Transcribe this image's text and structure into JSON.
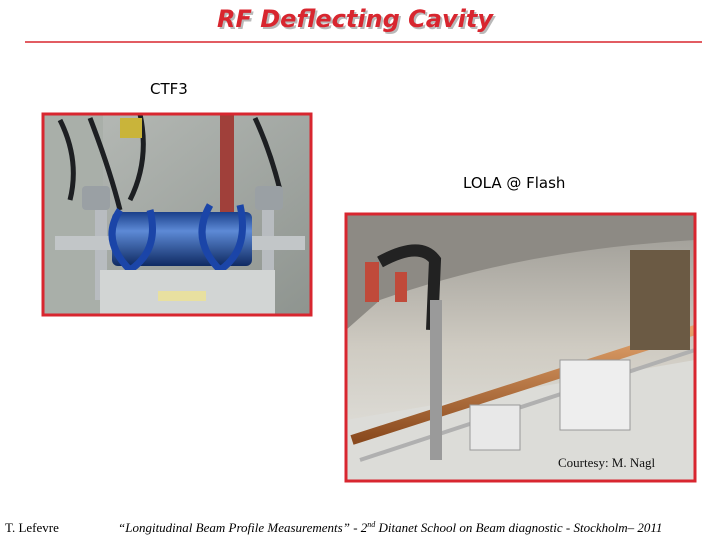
{
  "header": {
    "title": "RF Deflecting Cavity"
  },
  "left_photo": {
    "caption": "CTF3"
  },
  "right_photo": {
    "caption": "LOLA @ Flash",
    "credit": "Courtesy: M. Nagl"
  },
  "footer": {
    "author": "T. Lefevre",
    "talk_before": "“Longitudinal Beam Profile Measurements” - 2",
    "talk_sup": "nd",
    "talk_after": " Ditanet School on Beam diagnostic - Stockholm– 2011"
  }
}
